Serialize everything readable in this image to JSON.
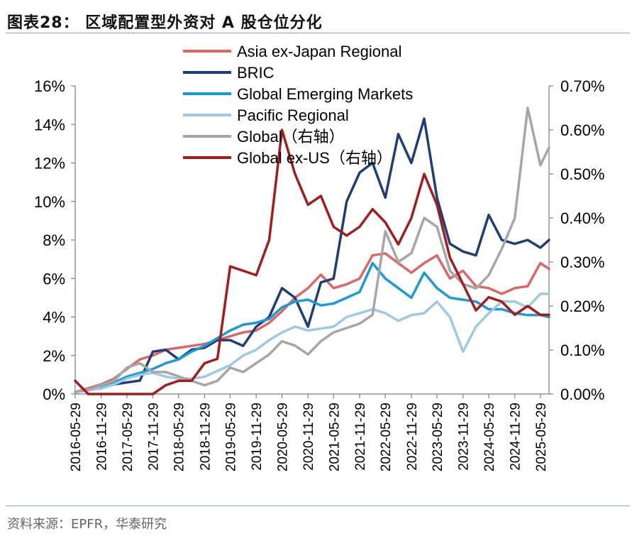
{
  "header": {
    "title": "图表28：  区域配置型外资对 A 股仓位分化"
  },
  "footer": {
    "source": "资料来源：EPFR，华泰研究"
  },
  "chart_data": {
    "type": "line",
    "title": "区域配置型外资对 A 股仓位分化",
    "x": [
      "2016-05-29",
      "2016-08-29",
      "2016-11-29",
      "2017-02-28",
      "2017-05-29",
      "2017-08-29",
      "2017-11-29",
      "2018-02-28",
      "2018-05-29",
      "2018-08-29",
      "2018-11-29",
      "2019-02-28",
      "2019-05-29",
      "2019-08-29",
      "2019-11-29",
      "2020-02-29",
      "2020-05-29",
      "2020-08-29",
      "2020-11-29",
      "2021-02-28",
      "2021-05-29",
      "2021-08-29",
      "2021-11-29",
      "2022-02-28",
      "2022-05-29",
      "2022-08-29",
      "2022-11-29",
      "2023-02-28",
      "2023-05-29",
      "2023-08-29",
      "2023-11-29",
      "2024-02-29",
      "2024-05-29",
      "2024-08-29",
      "2024-11-29",
      "2025-02-28",
      "2025-05-29",
      "2025-07-29"
    ],
    "x_tick_labels": [
      "2016-05-29",
      "2016-11-29",
      "2017-05-29",
      "2017-11-29",
      "2018-05-29",
      "2018-11-29",
      "2019-05-29",
      "2019-11-29",
      "2020-05-29",
      "2020-11-29",
      "2021-05-29",
      "2021-11-29",
      "2022-05-29",
      "2022-11-29",
      "2023-05-29",
      "2023-11-29",
      "2024-05-29",
      "2024-11-29",
      "2025-05-29"
    ],
    "y_left": {
      "ylim": [
        0,
        16
      ],
      "ticks": [
        0,
        2,
        4,
        6,
        8,
        10,
        12,
        14,
        16
      ],
      "tick_labels": [
        "0%",
        "2%",
        "4%",
        "6%",
        "8%",
        "10%",
        "12%",
        "14%",
        "16%"
      ]
    },
    "y_right": {
      "ylim": [
        0,
        0.7
      ],
      "ticks": [
        0,
        0.1,
        0.2,
        0.3,
        0.4,
        0.5,
        0.6,
        0.7
      ],
      "tick_labels": [
        "0.00%",
        "0.10%",
        "0.20%",
        "0.30%",
        "0.40%",
        "0.50%",
        "0.60%",
        "0.70%"
      ]
    },
    "legend_position": "top-center",
    "series": [
      {
        "name": "Asia ex-Japan Regional",
        "color": "#e06666",
        "axis": "left",
        "values": [
          0.1,
          0.3,
          0.5,
          0.8,
          1.3,
          1.8,
          2.0,
          2.3,
          2.4,
          2.5,
          2.6,
          2.8,
          3.0,
          3.2,
          3.3,
          3.7,
          4.3,
          5.0,
          5.5,
          6.2,
          5.5,
          5.7,
          6.0,
          7.2,
          7.3,
          6.8,
          6.3,
          6.8,
          7.2,
          6.0,
          6.4,
          5.6,
          5.5,
          5.2,
          5.5,
          5.6,
          6.8,
          6.5
        ]
      },
      {
        "name": "BRIC",
        "color": "#1f3d7a",
        "axis": "left",
        "values": [
          0.1,
          0.2,
          0.3,
          0.5,
          0.6,
          0.7,
          2.2,
          2.3,
          1.8,
          2.3,
          2.4,
          2.8,
          2.8,
          2.5,
          3.5,
          4.0,
          5.5,
          5.0,
          3.5,
          5.8,
          6.0,
          10.0,
          11.5,
          12.0,
          10.2,
          13.5,
          12.0,
          14.3,
          10.2,
          7.8,
          7.4,
          7.2,
          9.3,
          8.0,
          7.8,
          8.0,
          7.6,
          8.0
        ]
      },
      {
        "name": "Global Emerging Markets",
        "color": "#1a9ad6",
        "axis": "left",
        "values": [
          0.1,
          0.2,
          0.4,
          0.6,
          0.9,
          1.1,
          1.3,
          1.6,
          1.8,
          2.2,
          2.5,
          2.9,
          3.3,
          3.6,
          3.7,
          3.9,
          4.5,
          4.8,
          4.9,
          4.6,
          4.7,
          5.0,
          5.3,
          6.8,
          6.0,
          5.5,
          5.0,
          6.3,
          5.5,
          5.0,
          4.9,
          4.8,
          4.4,
          4.4,
          4.2,
          4.1,
          4.1,
          4.0
        ]
      },
      {
        "name": "Pacific Regional",
        "color": "#9ecae1",
        "axis": "left",
        "values": [
          0.1,
          0.2,
          0.3,
          0.5,
          0.8,
          1.0,
          1.1,
          0.9,
          0.8,
          0.8,
          0.9,
          1.2,
          1.5,
          2.0,
          2.3,
          2.8,
          3.2,
          3.5,
          3.3,
          3.4,
          3.5,
          4.0,
          4.2,
          4.4,
          4.2,
          3.8,
          4.1,
          4.2,
          4.8,
          4.0,
          2.2,
          3.5,
          4.2,
          4.8,
          4.8,
          4.5,
          5.2,
          5.2
        ]
      },
      {
        "name": "Global（右轴）",
        "color": "#a6a6a6",
        "axis": "right",
        "values": [
          0.005,
          0.01,
          0.02,
          0.03,
          0.06,
          0.07,
          0.05,
          0.05,
          0.04,
          0.03,
          0.02,
          0.03,
          0.06,
          0.05,
          0.07,
          0.09,
          0.12,
          0.11,
          0.09,
          0.12,
          0.14,
          0.15,
          0.16,
          0.18,
          0.37,
          0.3,
          0.32,
          0.4,
          0.38,
          0.28,
          0.25,
          0.24,
          0.27,
          0.33,
          0.4,
          0.65,
          0.52,
          0.56
        ]
      },
      {
        "name": "Global ex-US（右轴）",
        "color": "#a51c1c",
        "axis": "right",
        "values": [
          0.03,
          0.0,
          0.0,
          0.0,
          0.0,
          0.0,
          0.0,
          0.02,
          0.03,
          0.03,
          0.07,
          0.08,
          0.29,
          0.28,
          0.27,
          0.35,
          0.6,
          0.5,
          0.43,
          0.45,
          0.38,
          0.36,
          0.38,
          0.42,
          0.39,
          0.34,
          0.4,
          0.5,
          0.43,
          0.31,
          0.25,
          0.19,
          0.22,
          0.21,
          0.18,
          0.2,
          0.18,
          0.18
        ]
      }
    ]
  }
}
